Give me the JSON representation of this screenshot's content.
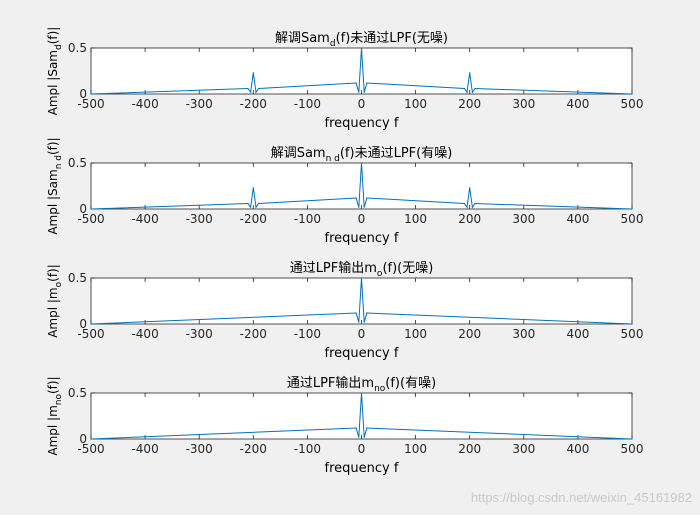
{
  "figure": {
    "background": "#f0f0f0",
    "axes_background": "#ffffff",
    "line_color": "#0072bd",
    "axis_color": "#262626"
  },
  "watermark": "https://blog.csdn.net/weixin_45161982",
  "chart_data": [
    {
      "type": "line",
      "title": "解调Samd(f)未通过LPF(无噪)",
      "title_parts": [
        {
          "t": "解调Sam"
        },
        {
          "t": "d",
          "sub": true
        },
        {
          "t": "(f)未通过LPF(无噪)"
        }
      ],
      "xlabel": "frequency f",
      "ylabel": "Ampl |Samd(f)|",
      "ylabel_parts": [
        {
          "t": "Ampl |Sam"
        },
        {
          "t": "d",
          "sub": true
        },
        {
          "t": "(f)|"
        }
      ],
      "xlim": [
        -500,
        500
      ],
      "ylim": [
        0,
        0.5
      ],
      "xticks": [
        -500,
        -400,
        -300,
        -200,
        -100,
        0,
        100,
        200,
        300,
        400,
        500
      ],
      "yticks": [
        0,
        0.5
      ],
      "series": [
        {
          "x": [
            -500,
            -210,
            -205,
            -200,
            -195,
            -190,
            -10,
            -5,
            0,
            5,
            10,
            190,
            195,
            200,
            205,
            210,
            500
          ],
          "y": [
            0,
            0.06,
            0.02,
            0.23,
            0.02,
            0.06,
            0.12,
            0.02,
            0.5,
            0.02,
            0.12,
            0.06,
            0.02,
            0.23,
            0.02,
            0.06,
            0
          ]
        }
      ]
    },
    {
      "type": "line",
      "title": "解调Samn d(f)未通过LPF(有噪)",
      "title_parts": [
        {
          "t": "解调Sam"
        },
        {
          "t": "n d",
          "sub": true
        },
        {
          "t": "(f)未通过LPF(有噪)"
        }
      ],
      "xlabel": "frequency f",
      "ylabel": "Ampl |Samn d(f)|",
      "ylabel_parts": [
        {
          "t": "Ampl |Sam"
        },
        {
          "t": "n d",
          "sub": true
        },
        {
          "t": "(f)|"
        }
      ],
      "xlim": [
        -500,
        500
      ],
      "ylim": [
        0,
        0.5
      ],
      "xticks": [
        -500,
        -400,
        -300,
        -200,
        -100,
        0,
        100,
        200,
        300,
        400,
        500
      ],
      "yticks": [
        0,
        0.5
      ],
      "series": [
        {
          "x": [
            -500,
            -210,
            -205,
            -200,
            -195,
            -190,
            -10,
            -5,
            0,
            5,
            10,
            190,
            195,
            200,
            205,
            210,
            500
          ],
          "y": [
            0,
            0.06,
            0.02,
            0.23,
            0.02,
            0.06,
            0.12,
            0.02,
            0.5,
            0.02,
            0.12,
            0.06,
            0.02,
            0.23,
            0.02,
            0.06,
            0
          ]
        }
      ]
    },
    {
      "type": "line",
      "title": "通过LPF输出mo(f)(无噪)",
      "title_parts": [
        {
          "t": "通过LPF输出m"
        },
        {
          "t": "o",
          "sub": true
        },
        {
          "t": "(f)(无噪)"
        }
      ],
      "xlabel": "frequency f",
      "ylabel": "Ampl |mo(f)|",
      "ylabel_parts": [
        {
          "t": "Ampl |m"
        },
        {
          "t": "o",
          "sub": true
        },
        {
          "t": "(f)|"
        }
      ],
      "xlim": [
        -500,
        500
      ],
      "ylim": [
        0,
        0.5
      ],
      "xticks": [
        -500,
        -400,
        -300,
        -200,
        -100,
        0,
        100,
        200,
        300,
        400,
        500
      ],
      "yticks": [
        0,
        0.5
      ],
      "series": [
        {
          "x": [
            -500,
            -10,
            -5,
            0,
            5,
            10,
            500
          ],
          "y": [
            0,
            0.12,
            0.02,
            0.5,
            0.02,
            0.12,
            0
          ]
        }
      ]
    },
    {
      "type": "line",
      "title": "通过LPF输出mno(f)(有噪)",
      "title_parts": [
        {
          "t": "通过LPF输出m"
        },
        {
          "t": "no",
          "sub": true
        },
        {
          "t": "(f)(有噪)"
        }
      ],
      "xlabel": "frequency f",
      "ylabel": "Ampl |mno(f)|",
      "ylabel_parts": [
        {
          "t": "Ampl |m"
        },
        {
          "t": "no",
          "sub": true
        },
        {
          "t": "(f)|"
        }
      ],
      "xlim": [
        -500,
        500
      ],
      "ylim": [
        0,
        0.5
      ],
      "xticks": [
        -500,
        -400,
        -300,
        -200,
        -100,
        0,
        100,
        200,
        300,
        400,
        500
      ],
      "yticks": [
        0,
        0.5
      ],
      "series": [
        {
          "x": [
            -500,
            -10,
            -5,
            0,
            5,
            10,
            500
          ],
          "y": [
            0,
            0.12,
            0.02,
            0.5,
            0.02,
            0.12,
            0
          ]
        }
      ]
    }
  ]
}
